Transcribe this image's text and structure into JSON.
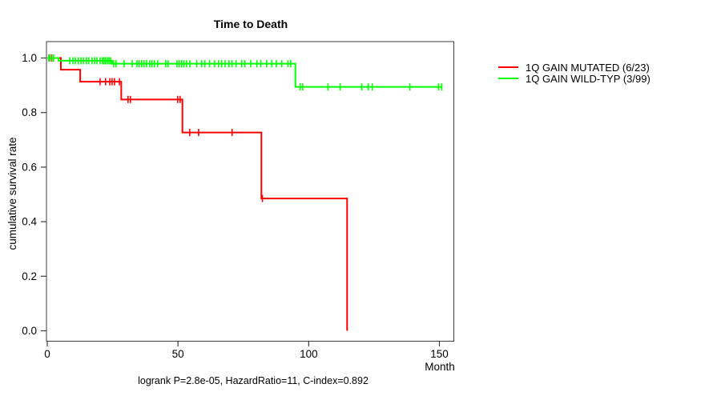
{
  "figure": {
    "title": "Time to Death",
    "footer": "logrank P=2.8e-05, HazardRatio=11, C-index=0.892"
  },
  "chart_data": {
    "type": "line",
    "subtype": "kaplan-meier-step",
    "title": "Time to Death",
    "xlabel": "Month",
    "ylabel": "cumulative survival rate",
    "x_ticks": [
      0,
      50,
      100,
      150
    ],
    "y_ticks": [
      {
        "label": "0.0",
        "value": 0.0
      },
      {
        "label": "0.2",
        "value": 0.2
      },
      {
        "label": "0.4",
        "value": 0.4
      },
      {
        "label": "0.6",
        "value": 0.6
      },
      {
        "label": "0.8",
        "value": 0.8
      },
      {
        "label": "1.0",
        "value": 1.0
      }
    ],
    "xlim": [
      0,
      155
    ],
    "ylim": [
      0,
      1.04
    ],
    "grid": false,
    "legend_position": "right-outside",
    "axis_color": "#3c3c3c",
    "annotation": "logrank P=2.8e-05, HazardRatio=11, C-index=0.892",
    "series": [
      {
        "name": "1Q GAIN MUTATED (6/23)",
        "color": "#ff0000",
        "events_total": "6/23",
        "end_month": 114.7,
        "steps": [
          [
            0,
            1.0
          ],
          [
            5.2,
            0.957
          ],
          [
            12.6,
            0.913
          ],
          [
            28.3,
            0.848
          ],
          [
            51.7,
            0.727
          ],
          [
            81.9,
            0.485
          ],
          [
            114.7,
            0.0
          ]
        ],
        "censors": [
          [
            0.8,
            1.0
          ],
          [
            1.7,
            1.0
          ],
          [
            20.2,
            0.913
          ],
          [
            22.3,
            0.913
          ],
          [
            23.9,
            0.913
          ],
          [
            24.8,
            0.913
          ],
          [
            25.7,
            0.913
          ],
          [
            27.6,
            0.913
          ],
          [
            30.9,
            0.848
          ],
          [
            31.8,
            0.848
          ],
          [
            49.9,
            0.848
          ],
          [
            50.8,
            0.848
          ],
          [
            54.5,
            0.727
          ],
          [
            57.9,
            0.727
          ],
          [
            70.7,
            0.727
          ],
          [
            82.3,
            0.485
          ]
        ]
      },
      {
        "name": "1Q GAIN WILD-TYP (3/99)",
        "color": "#00ff00",
        "events_total": "3/99",
        "end_month": 151.0,
        "steps": [
          [
            0,
            1.0
          ],
          [
            4.3,
            0.99
          ],
          [
            24.8,
            0.979
          ],
          [
            94.9,
            0.894
          ]
        ],
        "censors": [
          [
            0.6,
            1.0
          ],
          [
            1.5,
            1.0
          ],
          [
            2.4,
            1.0
          ],
          [
            8.6,
            0.99
          ],
          [
            9.8,
            0.99
          ],
          [
            10.7,
            0.99
          ],
          [
            11.9,
            0.99
          ],
          [
            12.9,
            0.99
          ],
          [
            13.8,
            0.99
          ],
          [
            15.0,
            0.99
          ],
          [
            15.9,
            0.99
          ],
          [
            17.1,
            0.99
          ],
          [
            18.1,
            0.99
          ],
          [
            19.0,
            0.99
          ],
          [
            20.2,
            0.99
          ],
          [
            21.1,
            0.99
          ],
          [
            21.7,
            0.99
          ],
          [
            22.3,
            0.99
          ],
          [
            23.0,
            0.99
          ],
          [
            23.6,
            0.99
          ],
          [
            24.2,
            0.99
          ],
          [
            25.4,
            0.979
          ],
          [
            26.3,
            0.979
          ],
          [
            29.4,
            0.979
          ],
          [
            32.5,
            0.979
          ],
          [
            34.3,
            0.979
          ],
          [
            35.2,
            0.979
          ],
          [
            36.1,
            0.979
          ],
          [
            37.0,
            0.979
          ],
          [
            38.0,
            0.979
          ],
          [
            39.2,
            0.979
          ],
          [
            40.1,
            0.979
          ],
          [
            41.0,
            0.979
          ],
          [
            42.2,
            0.979
          ],
          [
            45.3,
            0.979
          ],
          [
            46.2,
            0.979
          ],
          [
            49.6,
            0.979
          ],
          [
            50.5,
            0.979
          ],
          [
            51.4,
            0.979
          ],
          [
            52.3,
            0.979
          ],
          [
            53.3,
            0.979
          ],
          [
            54.5,
            0.979
          ],
          [
            57.2,
            0.979
          ],
          [
            59.1,
            0.979
          ],
          [
            60.3,
            0.979
          ],
          [
            62.1,
            0.979
          ],
          [
            64.0,
            0.979
          ],
          [
            65.5,
            0.979
          ],
          [
            66.7,
            0.979
          ],
          [
            68.0,
            0.979
          ],
          [
            69.5,
            0.979
          ],
          [
            70.7,
            0.979
          ],
          [
            72.2,
            0.979
          ],
          [
            74.4,
            0.979
          ],
          [
            75.6,
            0.979
          ],
          [
            77.8,
            0.979
          ],
          [
            80.2,
            0.979
          ],
          [
            81.7,
            0.979
          ],
          [
            83.9,
            0.979
          ],
          [
            85.9,
            0.979
          ],
          [
            87.6,
            0.979
          ],
          [
            89.7,
            0.979
          ],
          [
            92.1,
            0.979
          ],
          [
            93.1,
            0.979
          ],
          [
            96.7,
            0.894
          ],
          [
            97.7,
            0.894
          ],
          [
            107.4,
            0.894
          ],
          [
            112.0,
            0.894
          ],
          [
            120.3,
            0.894
          ],
          [
            122.8,
            0.894
          ],
          [
            124.3,
            0.894
          ],
          [
            138.7,
            0.894
          ],
          [
            149.7,
            0.894
          ],
          [
            150.9,
            0.894
          ]
        ]
      }
    ]
  }
}
